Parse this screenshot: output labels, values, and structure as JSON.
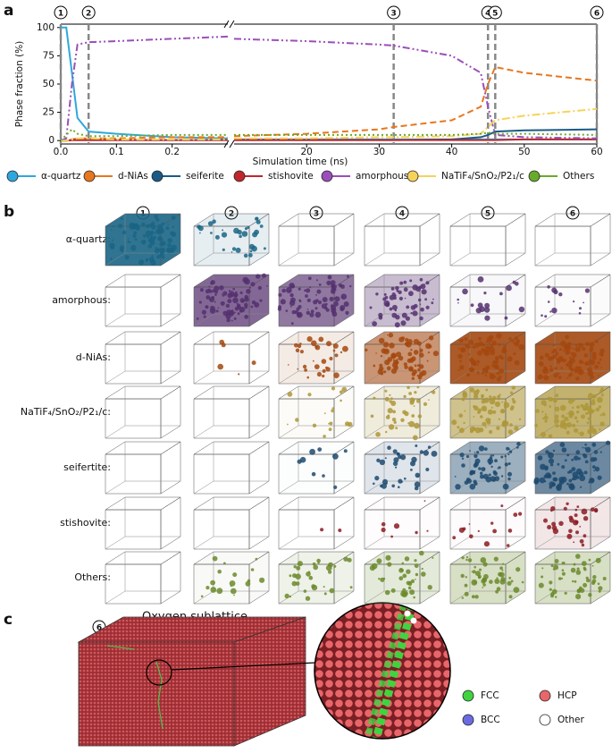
{
  "panel_labels": {
    "a": "a",
    "b": "b",
    "c": "c"
  },
  "chart_data": {
    "type": "line",
    "xlabel": "Simulation time (ns)",
    "ylabel": "Phase fraction (%)",
    "x": [
      0,
      0.01,
      0.02,
      0.03,
      0.05,
      0.1,
      0.2,
      0.3,
      10,
      20,
      30,
      32,
      40,
      44,
      45,
      46,
      50,
      60
    ],
    "xlim": [
      0,
      60
    ],
    "xbreak": [
      0.3,
      10
    ],
    "xticks": [
      {
        "value": 0,
        "label": "0.0"
      },
      {
        "value": 0.1,
        "label": "0.1"
      },
      {
        "value": 0.2,
        "label": "0.2"
      },
      20,
      30,
      40,
      50,
      60
    ],
    "ylim": [
      -3,
      103
    ],
    "yticks": [
      0,
      25,
      50,
      75,
      100
    ],
    "grid": false,
    "markers": [
      {
        "label": "1",
        "x": 0
      },
      {
        "label": "2",
        "x": 0.05
      },
      {
        "label": "3",
        "x": 32
      },
      {
        "label": "4",
        "x": 45
      },
      {
        "label": "5",
        "x": 46
      },
      {
        "label": "6",
        "x": 60
      }
    ],
    "series": [
      {
        "name": "α-quartz",
        "color": "#2ea8dc",
        "linestyle": "solid",
        "values": [
          100,
          100,
          60,
          20,
          8,
          6,
          3,
          2,
          1,
          1,
          1,
          1,
          1,
          1,
          1,
          1,
          1,
          1
        ]
      },
      {
        "name": "d-NiAs",
        "color": "#e8761e",
        "linestyle": "dashed",
        "values": [
          0,
          0,
          1,
          2,
          2,
          2,
          3,
          3,
          4,
          6,
          10,
          12,
          18,
          30,
          50,
          65,
          60,
          53
        ]
      },
      {
        "name": "seiferite",
        "color": "#1b5a86",
        "linestyle": "solid",
        "values": [
          0,
          0,
          0.5,
          0.5,
          0.5,
          0.5,
          0.5,
          0.5,
          0.5,
          0.5,
          0.5,
          0.5,
          1,
          3,
          5,
          8,
          9,
          10
        ]
      },
      {
        "name": "stishovite",
        "color": "#c0272d",
        "linestyle": "solid",
        "values": [
          0,
          0,
          0.5,
          0.5,
          0.5,
          0.5,
          0.5,
          0.5,
          0.5,
          0.5,
          0.5,
          0.5,
          0.5,
          0.5,
          0.5,
          0.5,
          1,
          1
        ]
      },
      {
        "name": "amorphous",
        "color": "#9b4fb8",
        "linestyle": "dashdotdot",
        "values": [
          0,
          2,
          50,
          85,
          87,
          88,
          90,
          92,
          90,
          88,
          85,
          84,
          75,
          60,
          30,
          5,
          3,
          2
        ]
      },
      {
        "name": "NaTiF₄/SnO₂/P2₁/c",
        "color": "#f5d35a",
        "linestyle": "dashdot",
        "values": [
          0,
          0,
          1,
          2,
          2,
          1,
          1,
          1,
          2,
          2,
          3,
          3,
          4,
          6,
          12,
          18,
          22,
          28
        ]
      },
      {
        "name": "Others",
        "color": "#6aaa2a",
        "linestyle": "dotted",
        "values": [
          0,
          5,
          10,
          6,
          4,
          4,
          5,
          5,
          5,
          5,
          5,
          5,
          5,
          6,
          7,
          6,
          6,
          5
        ]
      }
    ]
  },
  "panel_b": {
    "columns": [
      "1",
      "2",
      "3",
      "4",
      "5",
      "6"
    ],
    "rows": [
      {
        "label": "α-quartz:",
        "color": "#1a6585"
      },
      {
        "label": "amorphous:",
        "color": "#55306e"
      },
      {
        "label": "d-NiAs:",
        "color": "#a3480f"
      },
      {
        "label": "NaTiF₄/SnO₂/P2₁/c:",
        "color": "#ad9638"
      },
      {
        "label": "seifertite:",
        "color": "#1d4a6e"
      },
      {
        "label": "stishovite:",
        "color": "#8b1a22"
      },
      {
        "label": "Others:",
        "color": "#6b8a2a"
      }
    ]
  },
  "panel_c": {
    "title": "Oxygen sublattice",
    "marker": "6",
    "legend": [
      {
        "label": "FCC",
        "color": "#3fd43f"
      },
      {
        "label": "HCP",
        "color": "#e8666a"
      },
      {
        "label": "BCC",
        "color": "#6b6be0"
      },
      {
        "label": "Other",
        "color": "#ffffff"
      }
    ]
  }
}
